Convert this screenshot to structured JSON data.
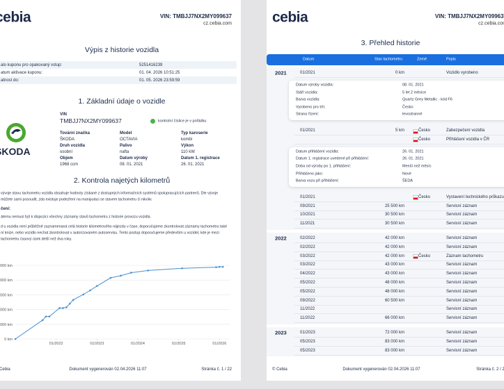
{
  "left_page": {
    "logo": "cebia",
    "vin": "VIN: TMBJJ7NX2MY099637",
    "website": "cz.cebia.com",
    "title": "Výpis z historie vozidla",
    "coupon_rows": [
      [
        "alo kuponu pro opakovaný vstup:",
        "5251416239"
      ],
      [
        "atum aktivace kuponu:",
        "01. 04. 2026 10:51:25"
      ],
      [
        "atnost do:",
        "01. 05. 2026 23:59:59"
      ]
    ],
    "section1": "1. Základní údaje o vozidle",
    "brand_logo": "ŠKODA",
    "vin_label": "VIN",
    "vin_value": "TMBJJ7NX2MY099637",
    "vin_check": "kontrolní číslice je v pořádku",
    "specs": [
      [
        "Tovární značka",
        "ŠKODA"
      ],
      [
        "Model",
        "OCTAVIA"
      ],
      [
        "Typ karoserie",
        "kombi"
      ],
      [
        "Druh vozidla",
        "osobní"
      ],
      [
        "Palivo",
        "nafta"
      ],
      [
        "Výkon",
        "110 kW"
      ],
      [
        "Objem",
        "1968 ccm"
      ],
      [
        "Datum výroby",
        "08. 01. 2021"
      ],
      [
        "Datum 1. registrace",
        "26. 01. 2021"
      ]
    ],
    "section2": "2. Kontrola najetých kilometrů",
    "intro": [
      "vývoje stavu tachometru vozidla obsahuje hodnoty získané z dostupných informačních systémů spolupracujících partnerů. Dle vývoje",
      "můžete sami posoudit, zda existuje podezření na manipulaci se stavem tachometru či nikoliv."
    ],
    "notice_heading": "čení:",
    "notice": [
      "átemu nemusí být k dispozici všechny záznamy stavů tachometru z historie provozu vozidla."
    ],
    "advice": [
      "d u vozidla není průběžně zaznamenaná celá historie kilometrového nájezdu v čase, doporučujeme zkontrolovat záznamy tachometru také",
      "ní knize, nebo vozidlo nechat zkontrolovat v autorizovaném autoservisu. Tento postup doporučujeme především u vozidel, kde je mezi",
      "tachometru časový úsek delší než dva roky."
    ],
    "mileage_chart": {
      "type": "line",
      "color": "#4a90cf",
      "grid": true,
      "x": [
        "01/2021",
        "09/2021",
        "10/2021",
        "11/2021",
        "02/2022",
        "03/2022",
        "04/2022",
        "05/2022",
        "06/2022",
        "09/2022",
        "11/2022",
        "01/2023",
        "05/2023",
        "08/2023",
        "11/2023",
        "04/2024",
        "02/2025",
        "12/2025",
        "01/2026",
        "02/2026"
      ],
      "values": [
        0,
        25500,
        30500,
        30500,
        42000,
        42000,
        43000,
        48000,
        53000,
        60500,
        66000,
        72000,
        83000,
        86000,
        90000,
        93000,
        96000,
        97500,
        98000,
        98000
      ],
      "xlim": [
        "01/2021",
        "04/2026"
      ],
      "xticks": [
        "01/2022",
        "01/2023",
        "01/2024",
        "01/2025",
        "01/2026"
      ],
      "ylim": [
        0,
        100000
      ],
      "yticks": [
        {
          "value": 0,
          "label": "0 km"
        },
        {
          "value": 20000,
          "label": "20 000 km"
        },
        {
          "value": 40000,
          "label": "40 000 km"
        },
        {
          "value": 60000,
          "label": "60 000 km"
        },
        {
          "value": 80000,
          "label": "80 000 km"
        },
        {
          "value": 100000,
          "label": "100 000 km"
        }
      ]
    },
    "footer": {
      "copyright": "© Cebia",
      "generated": "Dokument vygenerován 02.04.2026 11:07",
      "page": "Stránka č. 1 / 22"
    }
  },
  "right_page": {
    "logo": "cebia",
    "vin": "VIN: TMBJJ7NX2MY099637",
    "website": "cz.cebia.com",
    "title": "3. Přehled historie",
    "columns": [
      "Datum",
      "Stav tachometru",
      "Země",
      "Popis"
    ],
    "groups": [
      {
        "year": "2021",
        "entries": [
          {
            "date": "01/2021",
            "km": "0 km",
            "description": "Vozidlo vyrobeno",
            "details": [
              [
                "Datum výroby vozidla:",
                "08. 01. 2021"
              ],
              [
                "Stáří vozidla:",
                "5 let 2 měsíce"
              ],
              [
                "Barva vozidla:",
                "Quartz Grey Metallic - kód F6"
              ],
              [
                "Vyrobeno pro trh:",
                "Česko"
              ],
              [
                "Strana řízení:",
                "levostranné"
              ]
            ]
          },
          {
            "date": "01/2021",
            "km": "5 km",
            "country": "Česko",
            "description": "Zabezpečení vozidla"
          },
          {
            "country": "Česko",
            "description": "Přihlášení vozidla v ČR",
            "details": [
              [
                "Datum přihlášení vozidla:",
                "26. 01. 2021"
              ],
              [
                "Datum 1. registrace uvedené při přihlášení:",
                "26. 01. 2021"
              ],
              [
                "Doba od výroby po 1. přihlášení:",
                "Menší než měsíc"
              ],
              [
                "Přihlášeno jako:",
                "Nové"
              ],
              [
                "Barva vozu při přihlášení:",
                "ŠEDÁ"
              ]
            ]
          },
          {
            "date": "01/2021",
            "country": "Česko",
            "description": "Vystavení technického průkazu"
          },
          {
            "date": "09/2021",
            "km": "25 500 km",
            "description": "Servisní záznam"
          },
          {
            "date": "10/2021",
            "km": "30 500 km",
            "description": "Servisní záznam"
          },
          {
            "date": "11/2021",
            "km": "30 500 km",
            "description": "Servisní záznam"
          }
        ]
      },
      {
        "year": "2022",
        "entries": [
          {
            "date": "02/2022",
            "km": "42 000 km",
            "description": "Servisní záznam"
          },
          {
            "date": "02/2022",
            "km": "42 000 km",
            "description": "Servisní záznam"
          },
          {
            "date": "03/2022",
            "km": "42 000 km",
            "country": "Česko",
            "description": "Záznam tachometru"
          },
          {
            "date": "03/2022",
            "km": "43 000 km",
            "description": "Servisní záznam"
          },
          {
            "date": "04/2022",
            "km": "43 000 km",
            "description": "Servisní záznam"
          },
          {
            "date": "05/2022",
            "km": "48 000 km",
            "description": "Servisní záznam"
          },
          {
            "date": "05/2022",
            "km": "48 000 km",
            "description": "Servisní záznam"
          },
          {
            "date": "09/2022",
            "km": "60 500 km",
            "description": "Servisní záznam"
          },
          {
            "date": "11/2022",
            "description": "Servisní záznam"
          },
          {
            "date": "11/2022",
            "km": "66 000 km",
            "description": "Servisní záznam"
          }
        ]
      },
      {
        "year": "2023",
        "entries": [
          {
            "date": "01/2023",
            "km": "72 000 km",
            "description": "Servisní záznam"
          },
          {
            "date": "05/2023",
            "km": "83 000 km",
            "description": "Servisní záznam"
          },
          {
            "date": "05/2023",
            "km": "83 000 km",
            "description": "Servisní záznam"
          }
        ]
      }
    ],
    "footer": {
      "copyright": "© Cebia",
      "generated": "Dokument vygenerován 02.04.2026 11:07",
      "page": "Stránka č. 2 / 22"
    }
  }
}
